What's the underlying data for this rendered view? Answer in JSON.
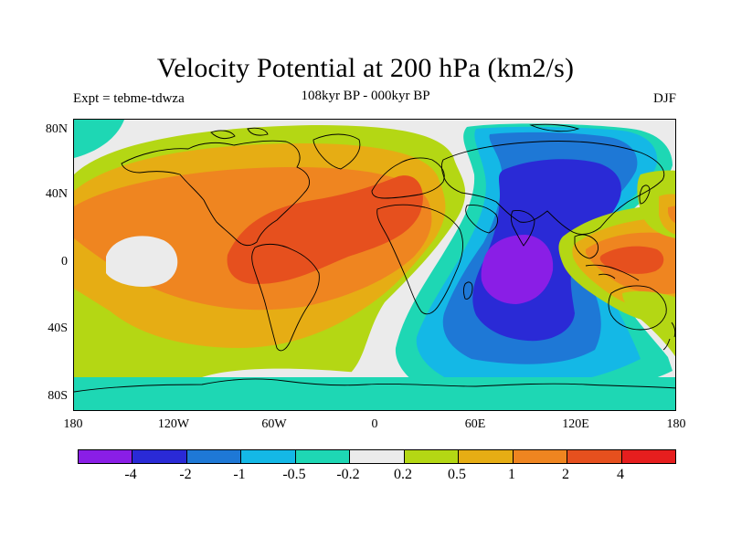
{
  "title": "Velocity Potential at 200 hPa (km2/s)",
  "subtitle": "108kyr BP - 000kyr BP",
  "left_label": "Expt = tebme-tdwza",
  "right_label": "DJF",
  "lat_labels": [
    "80N",
    "40N",
    "0",
    "40S",
    "80S"
  ],
  "lon_labels": [
    "180",
    "120W",
    "60W",
    "0",
    "60E",
    "120E",
    "180"
  ],
  "colorbar": {
    "colors": [
      "#8a1ee6",
      "#2a2ad6",
      "#1e78d6",
      "#14b8e6",
      "#1ed7b4",
      "#ebebeb",
      "#b4d714",
      "#e6ad14",
      "#ef8520",
      "#e6501e",
      "#e61e1e"
    ],
    "labels": [
      "-4",
      "-2",
      "-1",
      "-0.5",
      "-0.2",
      "0.2",
      "0.5",
      "1",
      "2",
      "4"
    ]
  },
  "chart_data": {
    "type": "heatmap",
    "title": "Velocity Potential at 200 hPa (km2/s)",
    "subtitle": "108kyr BP - 000kyr BP",
    "experiment": "Expt = tebme-tdwza",
    "season": "DJF",
    "units": "km2/s",
    "x_axis": {
      "ticks": [
        "180",
        "120W",
        "60W",
        "0",
        "60E",
        "120E",
        "180"
      ],
      "range": [
        -180,
        180
      ]
    },
    "y_axis": {
      "ticks": [
        "80N",
        "40N",
        "0",
        "40S",
        "80S"
      ],
      "range": [
        -90,
        90
      ]
    },
    "contour_levels": [
      -4,
      -2,
      -1,
      -0.5,
      -0.2,
      0.2,
      0.5,
      1,
      2,
      4
    ],
    "features": [
      {
        "name": "positive maximum, Atlantic / South America",
        "lon": -50,
        "lat": 10,
        "level": 2
      },
      {
        "name": "negative minimum, Indian Ocean",
        "lon": 70,
        "lat": -5,
        "level": -4
      },
      {
        "name": "positive cell, western Pacific / Indonesia",
        "lon": 145,
        "lat": 0,
        "level": 2
      },
      {
        "name": "near-zero area, eastern tropical Pacific",
        "lon": -155,
        "lat": -5,
        "level": 0.2
      }
    ]
  }
}
